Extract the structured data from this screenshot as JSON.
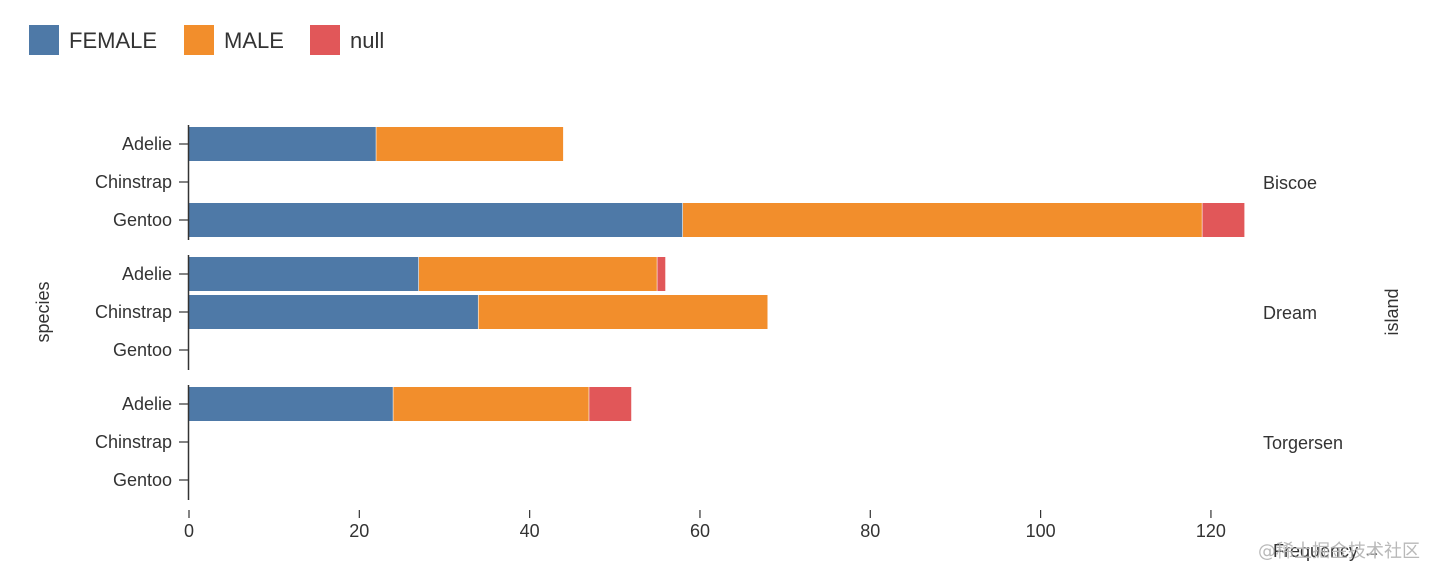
{
  "watermark": "@稀土掘金技术社区",
  "chart_data": {
    "type": "bar",
    "orientation": "horizontal",
    "stacked": true,
    "faceted": true,
    "xlabel": "Frequency →",
    "ylabel": "species",
    "facet_label": "island",
    "xlim": [
      0,
      124
    ],
    "x_ticks": [
      0,
      20,
      40,
      60,
      80,
      100,
      120
    ],
    "legend_position": "top-left",
    "grid": false,
    "series": [
      {
        "name": "FEMALE",
        "color": "#4e79a7"
      },
      {
        "name": "MALE",
        "color": "#f28e2c"
      },
      {
        "name": "null",
        "color": "#e15759"
      }
    ],
    "facets": [
      {
        "name": "Biscoe",
        "categories": [
          "Adelie",
          "Chinstrap",
          "Gentoo"
        ],
        "values": {
          "FEMALE": [
            22,
            0,
            58
          ],
          "MALE": [
            22,
            0,
            61
          ],
          "null": [
            0,
            0,
            5
          ]
        }
      },
      {
        "name": "Dream",
        "categories": [
          "Adelie",
          "Chinstrap",
          "Gentoo"
        ],
        "values": {
          "FEMALE": [
            27,
            34,
            0
          ],
          "MALE": [
            28,
            34,
            0
          ],
          "null": [
            1,
            0,
            0
          ]
        }
      },
      {
        "name": "Torgersen",
        "categories": [
          "Adelie",
          "Chinstrap",
          "Gentoo"
        ],
        "values": {
          "FEMALE": [
            24,
            0,
            0
          ],
          "MALE": [
            23,
            0,
            0
          ],
          "null": [
            5,
            0,
            0
          ]
        }
      }
    ]
  }
}
